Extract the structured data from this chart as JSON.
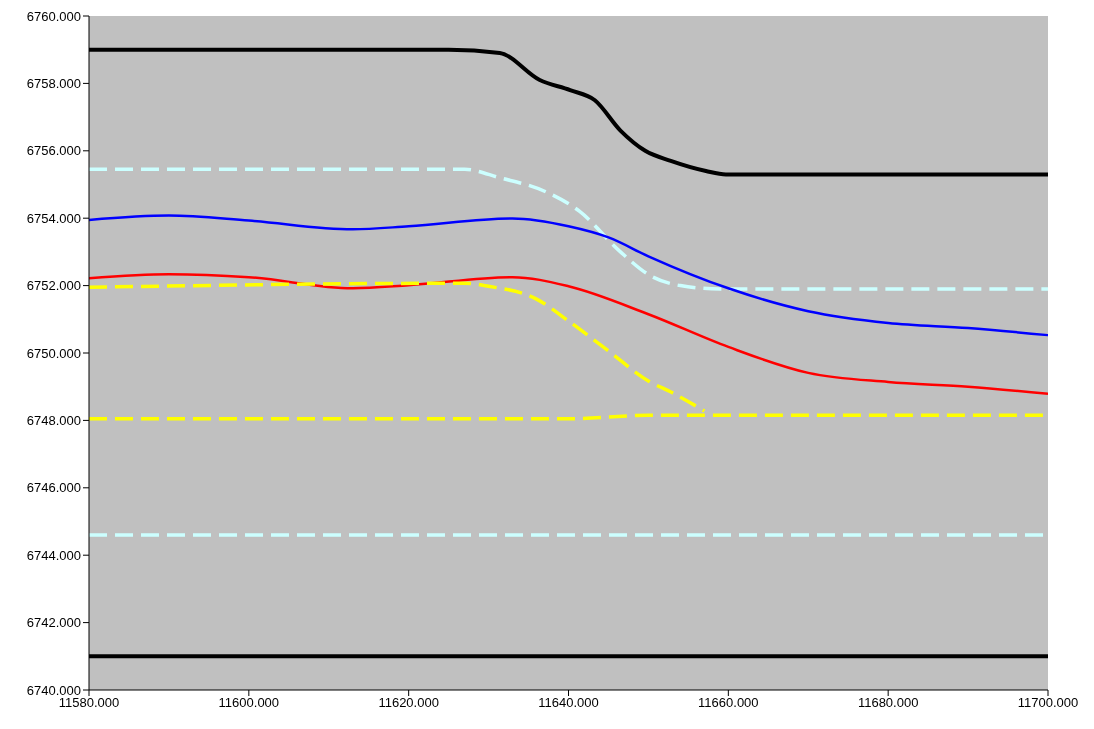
{
  "chart_data": {
    "type": "line",
    "xlim": [
      11580,
      11700
    ],
    "xticks": [
      {
        "value": 11580,
        "label": "11580.000"
      },
      {
        "value": 11600,
        "label": "11600.000"
      },
      {
        "value": 11620,
        "label": "11620.000"
      },
      {
        "value": 11640,
        "label": "11640.000"
      },
      {
        "value": 11660,
        "label": "11660.000"
      },
      {
        "value": 11680,
        "label": "11680.000"
      },
      {
        "value": 11700,
        "label": "11700.000"
      }
    ],
    "ylim": [
      6740,
      6760
    ],
    "yticks": [
      {
        "value": 6740,
        "label": "6740.000"
      },
      {
        "value": 6742,
        "label": "6742.000"
      },
      {
        "value": 6744,
        "label": "6744.000"
      },
      {
        "value": 6746,
        "label": "6746.000"
      },
      {
        "value": 6748,
        "label": "6748.000"
      },
      {
        "value": 6750,
        "label": "6750.000"
      },
      {
        "value": 6752,
        "label": "6752.000"
      },
      {
        "value": 6754,
        "label": "6754.000"
      },
      {
        "value": 6756,
        "label": "6756.000"
      },
      {
        "value": 6758,
        "label": "6758.000"
      },
      {
        "value": 6760,
        "label": "6760.000"
      }
    ],
    "marker": "none",
    "series": [
      {
        "color": "#000000",
        "line_style": "solid",
        "x": [
          11580,
          11625,
          11631.4,
          11636.4,
          11640.2,
          11643.3,
          11646.5,
          11649.6,
          11652.8,
          11657.2,
          11659.7,
          11700
        ],
        "values": [
          6759.0,
          6759.0,
          6758.9,
          6758.1,
          6757.8,
          6757.5,
          6756.6,
          6756.0,
          6755.7,
          6755.4,
          6755.3,
          6755.3
        ]
      },
      {
        "color": "#000000",
        "line_style": "solid",
        "x": [
          11580,
          11700
        ],
        "values": [
          6741.0,
          6741.0
        ]
      },
      {
        "color": "#ccffff",
        "line_style": "dashed",
        "x": [
          11580,
          11627,
          11631.4,
          11637,
          11641.4,
          11646.5,
          11650.2,
          11654,
          11659,
          11700
        ],
        "values": [
          6755.45,
          6755.45,
          6755.2,
          6754.8,
          6754.2,
          6753.0,
          6752.3,
          6752.0,
          6751.9,
          6751.9
        ]
      },
      {
        "color": "#ccffff",
        "line_style": "dashed",
        "x": [
          11580,
          11700
        ],
        "values": [
          6744.6,
          6744.6
        ]
      },
      {
        "color": "#0000ff",
        "line_style": "solid",
        "x": [
          11580,
          11590,
          11600,
          11613,
          11620,
          11633,
          11640,
          11645,
          11650,
          11660,
          11670,
          11680,
          11690,
          11700
        ],
        "values": [
          6753.95,
          6754.08,
          6753.93,
          6753.67,
          6753.76,
          6753.99,
          6753.76,
          6753.43,
          6752.87,
          6751.92,
          6751.24,
          6750.89,
          6750.74,
          6750.53
        ]
      },
      {
        "color": "#ff0000",
        "line_style": "solid",
        "x": [
          11580,
          11590,
          11600,
          11613,
          11620,
          11633,
          11640,
          11650,
          11660,
          11670,
          11680,
          11690,
          11700
        ],
        "values": [
          6752.22,
          6752.34,
          6752.25,
          6751.92,
          6752.01,
          6752.25,
          6751.98,
          6751.15,
          6750.18,
          6749.41,
          6749.14,
          6749.0,
          6748.79
        ]
      },
      {
        "color": "#ffff00",
        "line_style": "dashed",
        "x": [
          11580,
          11627,
          11630,
          11636,
          11640,
          11645,
          11650,
          11653,
          11657
        ],
        "values": [
          6751.95,
          6752.07,
          6751.98,
          6751.6,
          6750.95,
          6750.06,
          6749.17,
          6748.82,
          6748.28
        ]
      },
      {
        "color": "#ffff00",
        "line_style": "dashed",
        "x": [
          11580,
          11640,
          11650,
          11700
        ],
        "values": [
          6748.05,
          6748.05,
          6748.15,
          6748.15
        ]
      }
    ]
  }
}
